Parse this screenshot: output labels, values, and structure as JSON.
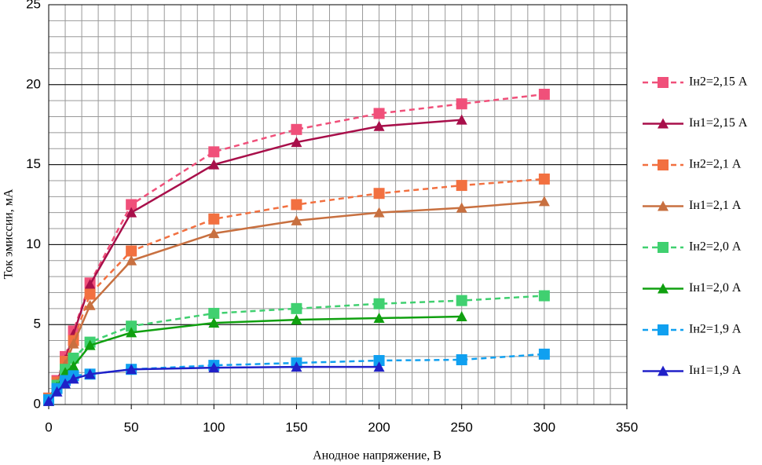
{
  "chart_data": {
    "type": "line",
    "x_label": "Анодное напряжение, В",
    "y_label": "Ток эмиссии, мА",
    "x": [
      0,
      5,
      10,
      15,
      25,
      50,
      100,
      150,
      200,
      250,
      300
    ],
    "xlim": [
      0,
      350
    ],
    "xticks": [
      0,
      50,
      100,
      150,
      200,
      250,
      300,
      350
    ],
    "ylim": [
      0,
      25
    ],
    "yticks": [
      0,
      5,
      10,
      15,
      20,
      25
    ],
    "grid": true,
    "minor_grid": {
      "x": 10,
      "y": 1
    },
    "legend": "right",
    "series": [
      {
        "name": "Iн2=2,15 А",
        "color": "#f0507a",
        "line_style": "dashed",
        "marker": "square",
        "values": [
          0.4,
          1.5,
          3.0,
          4.6,
          7.6,
          12.5,
          15.8,
          17.2,
          18.2,
          18.8,
          19.4
        ]
      },
      {
        "name": "Iн1=2,15 А",
        "color": "#a80f4a",
        "line_style": "solid",
        "marker": "triangle",
        "values": [
          0.3,
          1.4,
          2.8,
          4.4,
          7.5,
          12.0,
          15.0,
          16.4,
          17.4,
          17.8,
          null
        ]
      },
      {
        "name": "Iн2=2,1 А",
        "color": "#f27040",
        "line_style": "dashed",
        "marker": "square",
        "values": [
          0.4,
          1.4,
          2.7,
          4.0,
          6.9,
          9.6,
          11.6,
          12.5,
          13.2,
          13.7,
          14.1
        ]
      },
      {
        "name": "Iн1=2,1 А",
        "color": "#c87040",
        "line_style": "solid",
        "marker": "triangle",
        "values": [
          0.3,
          1.3,
          2.5,
          3.8,
          6.2,
          9.0,
          10.7,
          11.5,
          12.0,
          12.3,
          12.7
        ]
      },
      {
        "name": "Iн2=2,0 А",
        "color": "#40d070",
        "line_style": "dashed",
        "marker": "square",
        "values": [
          0.3,
          1.2,
          2.2,
          2.9,
          3.9,
          4.9,
          5.7,
          6.0,
          6.3,
          6.5,
          6.8
        ]
      },
      {
        "name": "Iн1=2,0 А",
        "color": "#10a010",
        "line_style": "solid",
        "marker": "triangle",
        "values": [
          0.2,
          1.1,
          2.0,
          2.4,
          3.7,
          4.5,
          5.1,
          5.3,
          5.4,
          5.5,
          null
        ]
      },
      {
        "name": "Iн2=1,9 А",
        "color": "#10a0f0",
        "line_style": "dashed",
        "marker": "square",
        "values": [
          0.3,
          1.0,
          1.5,
          1.8,
          1.9,
          2.2,
          2.45,
          2.6,
          2.75,
          2.8,
          3.15
        ]
      },
      {
        "name": "Iн1=1,9 А",
        "color": "#2020c8",
        "line_style": "solid",
        "marker": "triangle",
        "values": [
          0.2,
          0.8,
          1.3,
          1.6,
          1.9,
          2.2,
          2.3,
          2.35,
          2.35,
          null,
          null
        ]
      }
    ]
  }
}
